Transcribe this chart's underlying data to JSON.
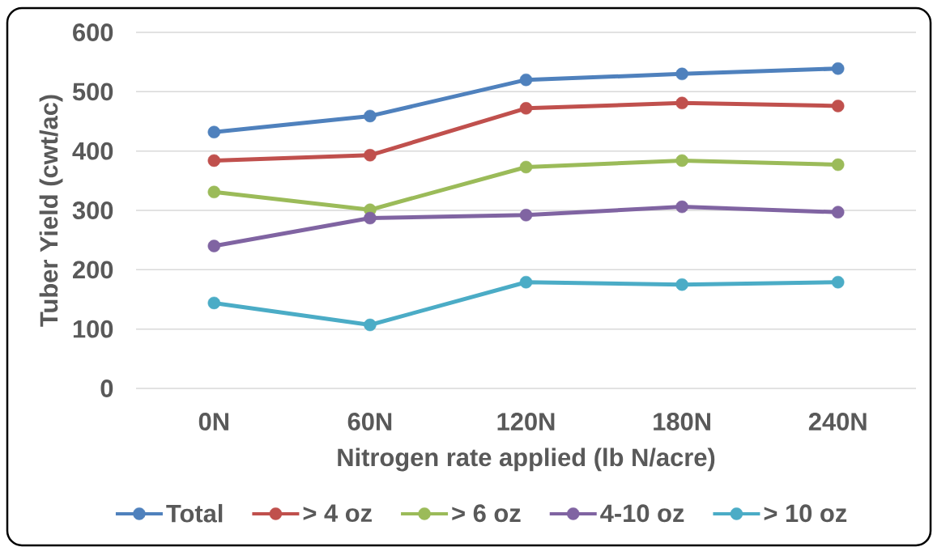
{
  "chart_data": {
    "type": "line",
    "xlabel": "Nitrogen rate applied (lb N/acre)",
    "ylabel": "Tuber Yield (cwt/ac)",
    "categories": [
      "0N",
      "60N",
      "120N",
      "180N",
      "240N"
    ],
    "series": [
      {
        "name": "Total",
        "color": "#4f81bd",
        "values": [
          432,
          459,
          520,
          530,
          539
        ]
      },
      {
        "name": "> 4 oz",
        "color": "#c0504d",
        "values": [
          384,
          393,
          472,
          481,
          476
        ]
      },
      {
        "name": "> 6 oz",
        "color": "#9bbb59",
        "values": [
          331,
          301,
          373,
          384,
          377
        ]
      },
      {
        "name": "4-10 oz",
        "color": "#8064a2",
        "values": [
          240,
          287,
          292,
          306,
          297
        ]
      },
      {
        "name": "> 10 oz",
        "color": "#4bacc6",
        "values": [
          144,
          107,
          179,
          175,
          179
        ]
      }
    ],
    "ylim": [
      0,
      600
    ],
    "yticks": [
      0,
      100,
      200,
      300,
      400,
      500,
      600
    ],
    "grid": "y",
    "legend": "bottom",
    "marker": "circle",
    "line_style": "solid"
  }
}
